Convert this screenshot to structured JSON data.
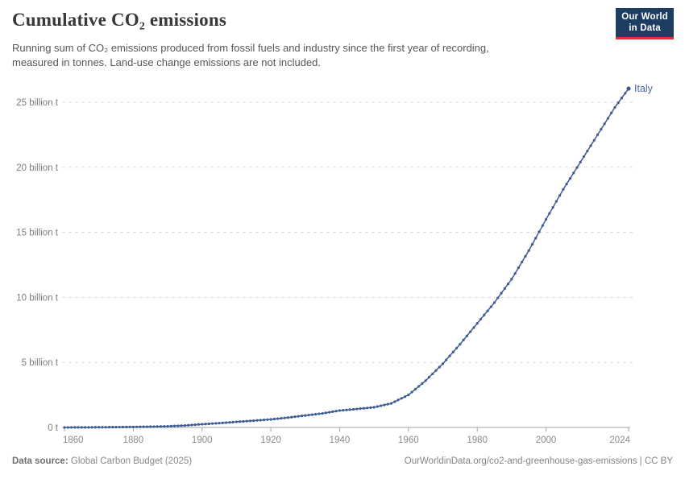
{
  "header": {
    "title": "Cumulative CO₂ emissions",
    "subtitle_line1": "Running sum of CO₂ emissions produced from fossil fuels and industry since the first year of recording,",
    "subtitle_line2": "measured in tonnes. Land-use change emissions are not included."
  },
  "logo": {
    "line1": "Our World",
    "line2": "in Data",
    "bg_color": "#1d3d63",
    "accent_color": "#e0312f"
  },
  "chart_data": {
    "type": "line",
    "title": "Cumulative CO₂ emissions",
    "unit": "billion t",
    "x_range": [
      1860,
      2024
    ],
    "ylim": [
      0,
      26.5
    ],
    "grid": true,
    "legend_position": "end-of-line",
    "line_color": "#3d5c94",
    "label_color": "#4a66a0",
    "y_tick_values": [
      0,
      5,
      10,
      15,
      20,
      25
    ],
    "y_tick_labels": [
      "0 t",
      "5 billion t",
      "10 billion t",
      "15 billion t",
      "20 billion t",
      "25 billion t"
    ],
    "x_tick_years": [
      1860,
      1880,
      1900,
      1920,
      1940,
      1960,
      1980,
      2000,
      2024
    ],
    "series": [
      {
        "name": "Italy",
        "start_year": 1860,
        "end_year": 2024,
        "values": [
          0.003,
          0.004,
          0.005,
          0.006,
          0.007,
          0.008,
          0.009,
          0.011,
          0.012,
          0.014,
          0.015,
          0.017,
          0.019,
          0.021,
          0.023,
          0.025,
          0.028,
          0.031,
          0.034,
          0.037,
          0.04,
          0.044,
          0.048,
          0.052,
          0.056,
          0.06,
          0.066,
          0.072,
          0.078,
          0.084,
          0.09,
          0.102,
          0.114,
          0.126,
          0.138,
          0.15,
          0.17,
          0.19,
          0.21,
          0.23,
          0.25,
          0.266,
          0.282,
          0.298,
          0.314,
          0.33,
          0.35,
          0.37,
          0.39,
          0.41,
          0.43,
          0.448,
          0.466,
          0.484,
          0.502,
          0.52,
          0.54,
          0.56,
          0.58,
          0.6,
          0.62,
          0.648,
          0.676,
          0.704,
          0.732,
          0.76,
          0.792,
          0.824,
          0.856,
          0.888,
          0.92,
          0.952,
          0.984,
          1.016,
          1.048,
          1.08,
          1.124,
          1.168,
          1.212,
          1.256,
          1.3,
          1.324,
          1.348,
          1.372,
          1.396,
          1.42,
          1.446,
          1.472,
          1.498,
          1.524,
          1.55,
          1.61,
          1.67,
          1.73,
          1.79,
          1.85,
          1.98,
          2.11,
          2.24,
          2.37,
          2.5,
          2.72,
          2.94,
          3.16,
          3.38,
          3.6,
          3.86,
          4.12,
          4.38,
          4.64,
          4.9,
          5.2,
          5.5,
          5.8,
          6.1,
          6.4,
          6.72,
          7.04,
          7.36,
          7.68,
          8.0,
          8.32,
          8.64,
          8.96,
          9.28,
          9.6,
          9.96,
          10.32,
          10.68,
          11.04,
          11.4,
          11.84,
          12.28,
          12.72,
          13.16,
          13.6,
          14.08,
          14.56,
          15.04,
          15.52,
          16.0,
          16.46,
          16.92,
          17.38,
          17.84,
          18.3,
          18.72,
          19.14,
          19.56,
          19.98,
          20.4,
          20.82,
          21.24,
          21.66,
          22.08,
          22.5,
          22.92,
          23.34,
          23.76,
          24.18,
          24.6,
          24.963,
          25.325,
          25.688,
          26.05
        ]
      }
    ]
  },
  "footer": {
    "source_label": "Data source:",
    "source_value": "Global Carbon Budget (2025)",
    "link_text": "OurWorldinData.org/co2-and-greenhouse-gas-emissions | CC BY"
  }
}
